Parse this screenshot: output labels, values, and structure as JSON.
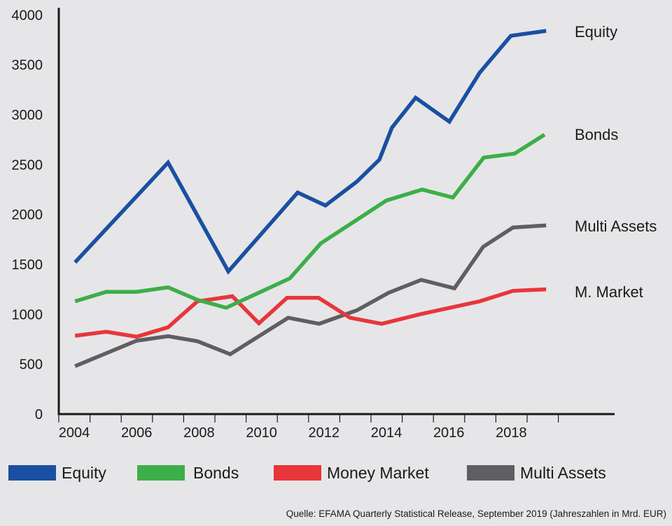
{
  "chart_data": {
    "type": "line",
    "title": "",
    "xlabel": "",
    "ylabel": "",
    "xlim": [
      2003.5,
      2021.3
    ],
    "ylim": [
      0,
      4000
    ],
    "x_ticks": [
      2004,
      2006,
      2008,
      2010,
      2012,
      2014,
      2016,
      2018
    ],
    "y_ticks": [
      0,
      500,
      1000,
      1500,
      2000,
      2500,
      3000,
      3500,
      4000
    ],
    "grid": false,
    "legend_position": "bottom",
    "series": [
      {
        "name": "Equity",
        "end_label": "Equity",
        "color": "#1b4fa3",
        "points": [
          [
            2004.52,
            1520
          ],
          [
            2007.5,
            2520
          ],
          [
            2009.43,
            1430
          ],
          [
            2011.65,
            2220
          ],
          [
            2012.54,
            2090
          ],
          [
            2013.55,
            2330
          ],
          [
            2014.27,
            2550
          ],
          [
            2014.67,
            2870
          ],
          [
            2015.43,
            3170
          ],
          [
            2016.51,
            2930
          ],
          [
            2017.48,
            3420
          ],
          [
            2018.48,
            3790
          ],
          [
            2019.61,
            3840
          ]
        ]
      },
      {
        "name": "Bonds",
        "end_label": "Bonds",
        "color": "#3dae49",
        "points": [
          [
            2004.52,
            1130
          ],
          [
            2005.52,
            1225
          ],
          [
            2006.49,
            1225
          ],
          [
            2007.5,
            1270
          ],
          [
            2008.44,
            1145
          ],
          [
            2009.36,
            1065
          ],
          [
            2011.4,
            1360
          ],
          [
            2012.39,
            1710
          ],
          [
            2014.49,
            2140
          ],
          [
            2015.64,
            2250
          ],
          [
            2016.62,
            2170
          ],
          [
            2017.61,
            2570
          ],
          [
            2018.6,
            2610
          ],
          [
            2019.56,
            2800
          ]
        ]
      },
      {
        "name": "Money Market",
        "end_label": "M. Market",
        "color": "#e8363b",
        "points": [
          [
            2004.52,
            785
          ],
          [
            2005.52,
            825
          ],
          [
            2006.49,
            775
          ],
          [
            2007.5,
            870
          ],
          [
            2008.44,
            1130
          ],
          [
            2009.56,
            1180
          ],
          [
            2010.41,
            910
          ],
          [
            2011.31,
            1165
          ],
          [
            2012.32,
            1165
          ],
          [
            2013.33,
            965
          ],
          [
            2014.34,
            905
          ],
          [
            2015.57,
            1000
          ],
          [
            2017.48,
            1130
          ],
          [
            2018.55,
            1235
          ],
          [
            2019.61,
            1250
          ]
        ]
      },
      {
        "name": "Multi Assets",
        "end_label": "Multi Assets",
        "color": "#5f5f61",
        "points": [
          [
            2004.52,
            480
          ],
          [
            2005.52,
            610
          ],
          [
            2006.49,
            735
          ],
          [
            2007.5,
            780
          ],
          [
            2008.44,
            730
          ],
          [
            2009.49,
            600
          ],
          [
            2011.35,
            965
          ],
          [
            2012.34,
            905
          ],
          [
            2013.55,
            1040
          ],
          [
            2014.56,
            1215
          ],
          [
            2015.61,
            1345
          ],
          [
            2016.67,
            1260
          ],
          [
            2017.59,
            1675
          ],
          [
            2018.55,
            1870
          ],
          [
            2019.61,
            1890
          ]
        ]
      }
    ]
  },
  "legend": {
    "items": [
      {
        "label": "Equity",
        "color": "#1b4fa3"
      },
      {
        "label": "Bonds",
        "color": "#3dae49"
      },
      {
        "label": "Money Market",
        "color": "#e8363b"
      },
      {
        "label": "Multi Assets",
        "color": "#5f5f61"
      }
    ]
  },
  "source": "Quelle: EFAMA Quarterly Statistical Release, September 2019 (Jahreszahlen in Mrd. EUR)"
}
